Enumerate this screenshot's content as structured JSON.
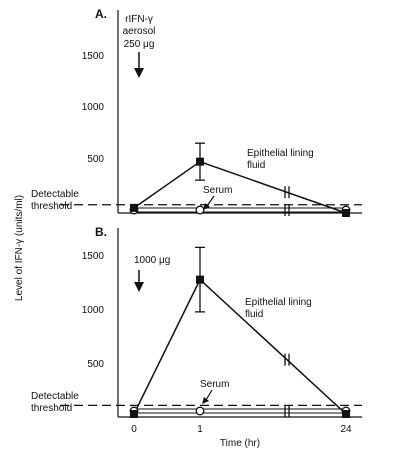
{
  "chart_data": [
    {
      "panel": "A.",
      "type": "line",
      "x": [
        "0",
        "1",
        "24"
      ],
      "ylabel": "Level of IFN-γ (units/ml)",
      "ylim": [
        0,
        1750
      ],
      "yticks": [
        "500",
        "1000",
        "1500"
      ],
      "annotation": [
        "rIFN-γ",
        "aerosol",
        "250 μg"
      ],
      "series": [
        {
          "name": "Epithelial lining fluid",
          "name_lines": [
            "Epithelial lining",
            "fluid"
          ],
          "values": [
            50,
            500,
            0
          ],
          "error": [
            0,
            180,
            0
          ],
          "marker": "filled"
        },
        {
          "name": "Serum",
          "name_lines": [
            "Serum"
          ],
          "values": [
            0,
            0,
            0
          ],
          "marker": "open"
        }
      ],
      "threshold": {
        "value": 80,
        "label_lines": [
          "Detectable",
          "threshold"
        ]
      }
    },
    {
      "panel": "B.",
      "type": "line",
      "x": [
        "0",
        "1",
        "24"
      ],
      "xlabel": "Time (hr)",
      "ylim": [
        0,
        1750
      ],
      "yticks": [
        "500",
        "1000",
        "1500"
      ],
      "annotation": [
        "1000 μg"
      ],
      "series": [
        {
          "name": "Epithelial lining fluid",
          "name_lines": [
            "Epithelial lining",
            "fluid"
          ],
          "values": [
            0,
            1250,
            0
          ],
          "error": [
            0,
            300,
            0
          ],
          "marker": "filled"
        },
        {
          "name": "Serum",
          "name_lines": [
            "Serum"
          ],
          "values": [
            0,
            0,
            0
          ],
          "marker": "open"
        }
      ],
      "threshold": {
        "value": 80,
        "label_lines": [
          "Detectable",
          "threshold"
        ]
      }
    }
  ]
}
